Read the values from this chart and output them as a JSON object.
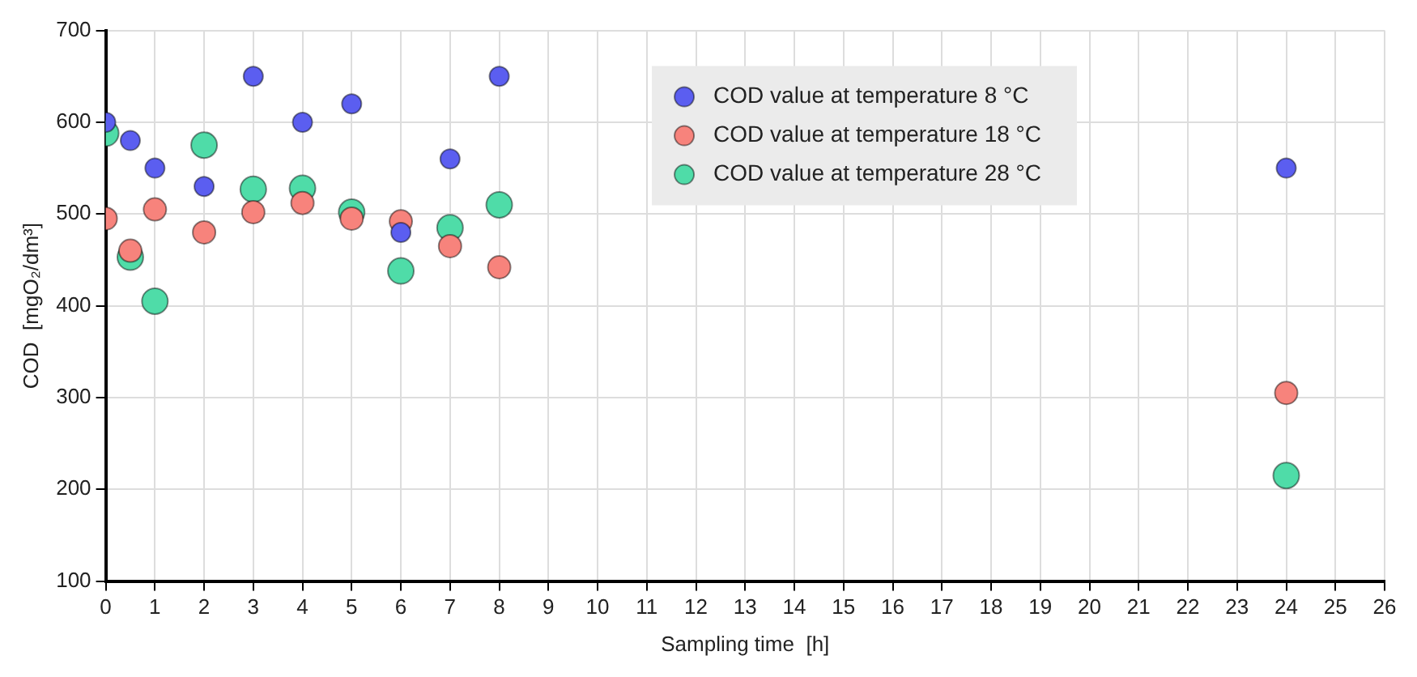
{
  "chart_data": {
    "type": "scatter",
    "xlabel": "Sampling time  [h]",
    "ylabel": "COD  [mgO₂/dm³]",
    "xlim": [
      0,
      26
    ],
    "xticks": [
      0,
      1,
      2,
      3,
      4,
      5,
      6,
      7,
      8,
      9,
      10,
      11,
      12,
      13,
      14,
      15,
      16,
      17,
      18,
      19,
      20,
      21,
      22,
      23,
      24,
      25,
      26
    ],
    "ylim": [
      100,
      700
    ],
    "yticks": [
      100,
      200,
      300,
      400,
      500,
      600,
      700
    ],
    "grid": true,
    "legend": "top right",
    "marker": "circle",
    "x": [
      0,
      0.5,
      1,
      2,
      3,
      4,
      5,
      6,
      7,
      8,
      24
    ],
    "series": [
      {
        "name": "COD value at temperature 8 °C",
        "color": "#5b5ef0",
        "values": [
          600,
          580,
          550,
          530,
          650,
          600,
          620,
          480,
          560,
          650,
          550
        ]
      },
      {
        "name": "COD value at temperature 18 °C",
        "color": "#f7837c",
        "values": [
          495,
          460,
          505,
          480,
          502,
          512,
          495,
          492,
          465,
          442,
          305
        ]
      },
      {
        "name": "COD value at temperature 28 °C",
        "color": "#4fdca8",
        "values": [
          588,
          453,
          405,
          575,
          527,
          528,
          502,
          438,
          485,
          510,
          215
        ]
      }
    ]
  }
}
